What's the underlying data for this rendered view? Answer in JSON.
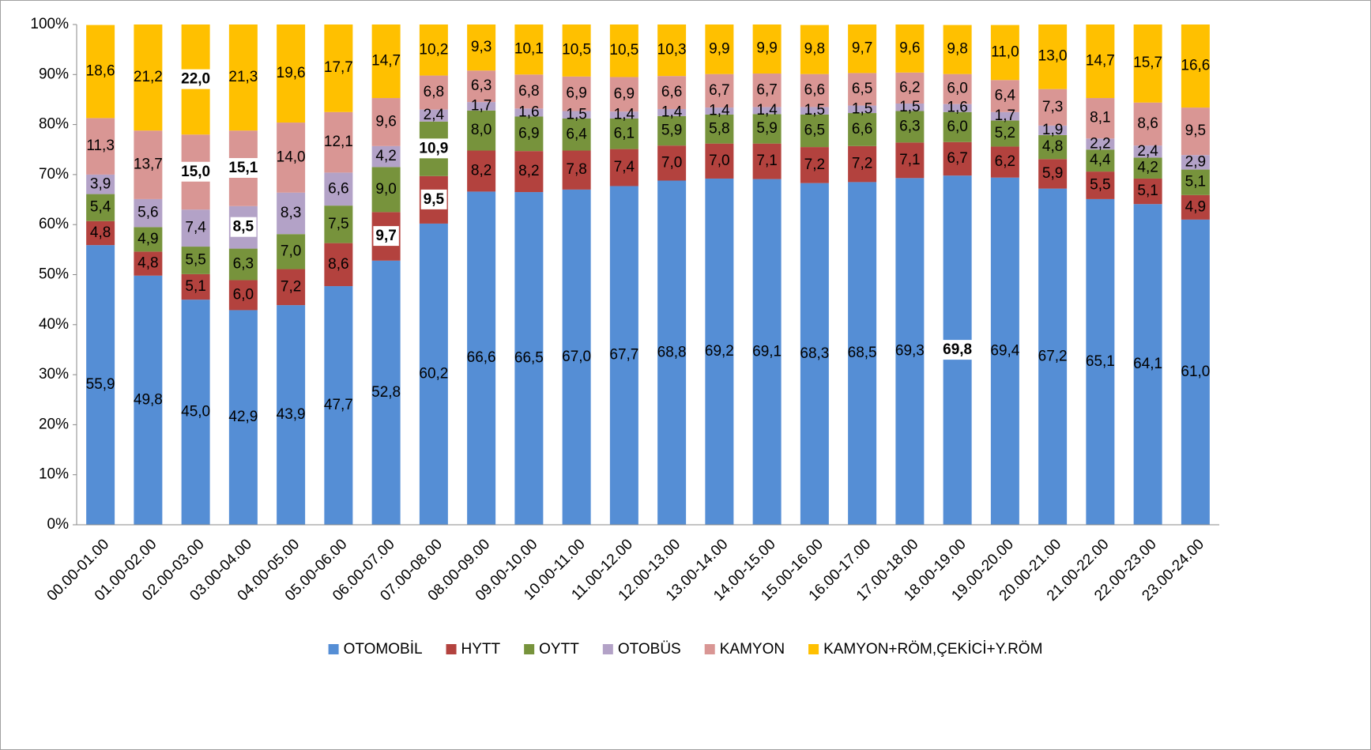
{
  "chart_data": {
    "type": "stacked_bar",
    "categories": [
      "00.00-01.00",
      "01.00-02.00",
      "02.00-03.00",
      "03.00-04.00",
      "04.00-05.00",
      "05.00-06.00",
      "06.00-07.00",
      "07.00-08.00",
      "08.00-09.00",
      "09.00-10.00",
      "10.00-11.00",
      "11.00-12.00",
      "12.00-13.00",
      "13.00-14.00",
      "14.00-15.00",
      "15.00-16.00",
      "16.00-17.00",
      "17.00-18.00",
      "18.00-19.00",
      "19.00-20.00",
      "20.00-21.00",
      "21.00-22.00",
      "22.00-23.00",
      "23.00-24.00"
    ],
    "series": [
      {
        "name": "OTOMOBİL",
        "color": "#558ed5",
        "values": [
          55.9,
          49.8,
          45.0,
          42.9,
          43.9,
          47.7,
          52.8,
          60.2,
          66.6,
          66.5,
          67.0,
          67.7,
          68.8,
          69.2,
          69.1,
          68.3,
          68.5,
          69.3,
          69.8,
          69.4,
          67.2,
          65.1,
          64.1,
          61.0
        ],
        "value_labels": [
          "55,9",
          "49,8",
          "45,0",
          "42,9",
          "43,9",
          "47,7",
          "52,8",
          "60,2",
          "66,6",
          "66,5",
          "67,0",
          "67,7",
          "68,8",
          "69,2",
          "69,1",
          "68,3",
          "68,5",
          "69,3",
          "69,8",
          "69,4",
          "67,2",
          "65,1",
          "64,1",
          "61,0"
        ],
        "highlight": [
          18
        ]
      },
      {
        "name": "HYTT",
        "color": "#b3423e",
        "values": [
          4.8,
          4.8,
          5.1,
          6.0,
          7.2,
          8.6,
          9.7,
          9.5,
          8.2,
          8.2,
          7.8,
          7.4,
          7.0,
          7.0,
          7.1,
          7.2,
          7.2,
          7.1,
          6.7,
          6.2,
          5.9,
          5.5,
          5.1,
          4.9
        ],
        "value_labels": [
          "4,8",
          "4,8",
          "5,1",
          "6,0",
          "7,2",
          "8,6",
          "9,7",
          "9,5",
          "8,2",
          "8,2",
          "7,8",
          "7,4",
          "7,0",
          "7,0",
          "7,1",
          "7,2",
          "7,2",
          "7,1",
          "6,7",
          "6,2",
          "5,9",
          "5,5",
          "5,1",
          "4,9"
        ],
        "highlight": [
          6,
          7
        ]
      },
      {
        "name": "OYTT",
        "color": "#77933c",
        "values": [
          5.4,
          4.9,
          5.5,
          6.3,
          7.0,
          7.5,
          9.0,
          10.9,
          8.0,
          6.9,
          6.4,
          6.1,
          5.9,
          5.8,
          5.9,
          6.5,
          6.6,
          6.3,
          6.0,
          5.2,
          4.8,
          4.4,
          4.2,
          5.1
        ],
        "value_labels": [
          "5,4",
          "4,9",
          "5,5",
          "6,3",
          "7,0",
          "7,5",
          "9,0",
          "10,9",
          "8,0",
          "6,9",
          "6,4",
          "6,1",
          "5,9",
          "5,8",
          "5,9",
          "6,5",
          "6,6",
          "6,3",
          "6,0",
          "5,2",
          "4,8",
          "4,4",
          "4,2",
          "5,1"
        ],
        "highlight": [
          7
        ]
      },
      {
        "name": "OTOBÜS",
        "color": "#b3a2c7",
        "values": [
          3.9,
          5.6,
          7.4,
          8.5,
          8.3,
          6.6,
          4.2,
          2.4,
          1.7,
          1.6,
          1.5,
          1.4,
          1.4,
          1.4,
          1.4,
          1.5,
          1.5,
          1.5,
          1.6,
          1.7,
          1.9,
          2.2,
          2.4,
          2.9
        ],
        "value_labels": [
          "3,9",
          "5,6",
          "7,4",
          "8,5",
          "8,3",
          "6,6",
          "4,2",
          "2,4",
          "1,7",
          "1,6",
          "1,5",
          "1,4",
          "1,4",
          "1,4",
          "1,4",
          "1,5",
          "1,5",
          "1,5",
          "1,6",
          "1,7",
          "1,9",
          "2,2",
          "2,4",
          "2,9"
        ],
        "highlight": [
          3
        ]
      },
      {
        "name": "KAMYON",
        "color": "#d99694",
        "values": [
          11.3,
          13.7,
          15.0,
          15.1,
          14.0,
          12.1,
          9.6,
          6.8,
          6.3,
          6.8,
          6.9,
          6.9,
          6.6,
          6.7,
          6.7,
          6.6,
          6.5,
          6.2,
          6.0,
          6.4,
          7.3,
          8.1,
          8.6,
          9.5
        ],
        "value_labels": [
          "11,3",
          "13,7",
          "15,0",
          "15,1",
          "14,0",
          "12,1",
          "9,6",
          "6,8",
          "6,3",
          "6,8",
          "6,9",
          "6,9",
          "6,6",
          "6,7",
          "6,7",
          "6,6",
          "6,5",
          "6,2",
          "6,0",
          "6,4",
          "7,3",
          "8,1",
          "8,6",
          "9,5"
        ],
        "highlight": [
          2,
          3
        ]
      },
      {
        "name": "KAMYON+RÖM,ÇEKİCİ+Y.RÖM",
        "color": "#ffc000",
        "values": [
          18.6,
          21.2,
          22.0,
          21.3,
          19.6,
          17.7,
          14.7,
          10.2,
          9.3,
          10.1,
          10.5,
          10.5,
          10.3,
          9.9,
          9.9,
          9.8,
          9.7,
          9.6,
          9.8,
          11.0,
          13.0,
          14.7,
          15.7,
          16.6
        ],
        "value_labels": [
          "18,6",
          "21,2",
          "22,0",
          "21,3",
          "19,6",
          "17,7",
          "14,7",
          "10,2",
          "9,3",
          "10,1",
          "10,5",
          "10,5",
          "10,3",
          "9,9",
          "9,9",
          "9,8",
          "9,7",
          "9,6",
          "9,8",
          "11,0",
          "13,0",
          "14,7",
          "15,7",
          "16,6"
        ],
        "highlight": [
          2
        ]
      }
    ],
    "highlight_color": "#ff0000",
    "ylim": [
      0,
      100
    ],
    "yticks": [
      {
        "value": 0,
        "label": "0%"
      },
      {
        "value": 10,
        "label": "10%"
      },
      {
        "value": 20,
        "label": "20%"
      },
      {
        "value": 30,
        "label": "30%"
      },
      {
        "value": 40,
        "label": "40%"
      },
      {
        "value": 50,
        "label": "50%"
      },
      {
        "value": 60,
        "label": "60%"
      },
      {
        "value": 70,
        "label": "70%"
      },
      {
        "value": 80,
        "label": "80%"
      },
      {
        "value": 90,
        "label": "90%"
      },
      {
        "value": 100,
        "label": "100%"
      }
    ],
    "legend": "bottom"
  }
}
